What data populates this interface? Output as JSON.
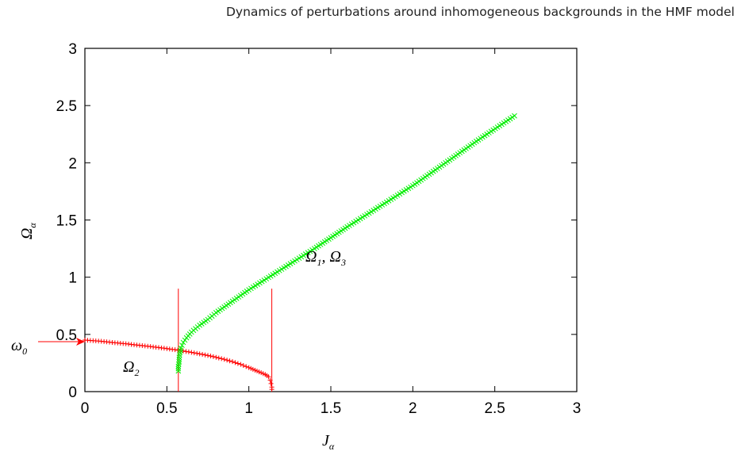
{
  "header": {
    "text": "Dynamics of perturbations around inhomogeneous backgrounds in the HMF model"
  },
  "chart_data": {
    "type": "scatter",
    "title": "",
    "xlabel": {
      "base": "J",
      "sub": "α"
    },
    "ylabel": {
      "base": "Ω",
      "sub": "α"
    },
    "xlim": [
      0,
      3
    ],
    "ylim": [
      0,
      3
    ],
    "x_ticks": [
      "0",
      "0.5",
      "1",
      "1.5",
      "2",
      "2.5",
      "3"
    ],
    "y_ticks": [
      "0",
      "0.5",
      "1",
      "1.5",
      "2",
      "2.5",
      "3"
    ],
    "grid": false,
    "series": [
      {
        "name": "Ω2",
        "color": "#ff0000",
        "marker": "+",
        "points": [
          [
            0.0,
            0.45
          ],
          [
            0.05,
            0.445
          ],
          [
            0.1,
            0.44
          ],
          [
            0.15,
            0.432
          ],
          [
            0.2,
            0.425
          ],
          [
            0.25,
            0.418
          ],
          [
            0.3,
            0.41
          ],
          [
            0.35,
            0.402
          ],
          [
            0.4,
            0.394
          ],
          [
            0.45,
            0.385
          ],
          [
            0.5,
            0.376
          ],
          [
            0.55,
            0.366
          ],
          [
            0.6,
            0.355
          ],
          [
            0.65,
            0.343
          ],
          [
            0.7,
            0.33
          ],
          [
            0.75,
            0.316
          ],
          [
            0.8,
            0.3
          ],
          [
            0.85,
            0.282
          ],
          [
            0.9,
            0.262
          ],
          [
            0.95,
            0.238
          ],
          [
            1.0,
            0.21
          ],
          [
            1.05,
            0.18
          ],
          [
            1.1,
            0.15
          ],
          [
            1.12,
            0.13
          ],
          [
            1.13,
            0.1
          ],
          [
            1.135,
            0.07
          ],
          [
            1.14,
            0.04
          ],
          [
            1.14,
            0.02
          ]
        ]
      },
      {
        "name": "Ω1, Ω3",
        "color": "#00ee00",
        "marker": "x",
        "points": [
          [
            0.57,
            0.18
          ],
          [
            0.57,
            0.22
          ],
          [
            0.575,
            0.26
          ],
          [
            0.575,
            0.3
          ],
          [
            0.58,
            0.34
          ],
          [
            0.585,
            0.38
          ],
          [
            0.6,
            0.43
          ],
          [
            0.62,
            0.47
          ],
          [
            0.65,
            0.52
          ],
          [
            0.7,
            0.58
          ],
          [
            0.75,
            0.63
          ],
          [
            0.8,
            0.69
          ],
          [
            0.9,
            0.79
          ],
          [
            1.0,
            0.89
          ],
          [
            1.2,
            1.07
          ],
          [
            1.4,
            1.25
          ],
          [
            1.6,
            1.44
          ],
          [
            1.8,
            1.62
          ],
          [
            2.0,
            1.8
          ],
          [
            2.2,
            2.0
          ],
          [
            2.4,
            2.2
          ],
          [
            2.62,
            2.41
          ]
        ]
      }
    ],
    "vlines": [
      {
        "x": 0.57,
        "y_top": 0.9,
        "color": "#ff0000"
      },
      {
        "x": 1.14,
        "y_top": 0.9,
        "color": "#ff0000"
      }
    ],
    "annotations": [
      {
        "base": "Ω",
        "sub1": "1",
        "sep": ", ",
        "base2": "Ω",
        "sub2": "3",
        "x": 1.4,
        "y": 1.15
      },
      {
        "base": "Ω",
        "sub1": "2",
        "x": 0.35,
        "y": 0.18
      },
      {
        "base": "ω",
        "sub1": "0",
        "arrow_y": 0.45,
        "color": "#ff0000"
      }
    ]
  }
}
